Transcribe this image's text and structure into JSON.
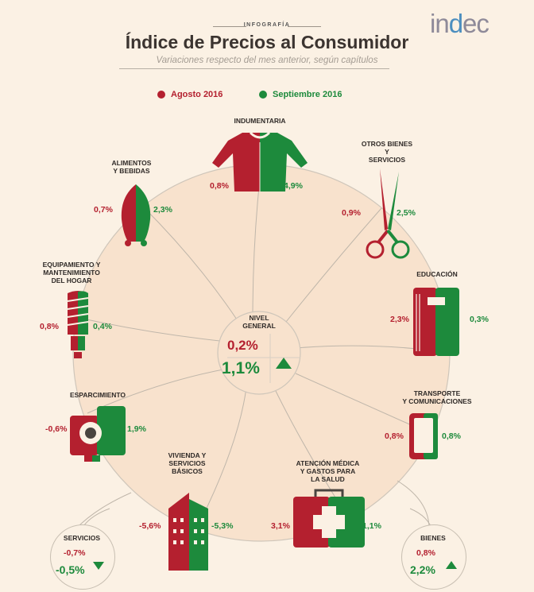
{
  "header": {
    "kicker": "INFOGRAFÍA",
    "title": "Índice de Precios al Consumidor",
    "subtitle": "Variaciones respecto del mes anterior, según capítulos",
    "logo_text_a": "in",
    "logo_text_b": "d",
    "logo_text_c": "ec"
  },
  "legend": {
    "aug_label": "Agosto 2016",
    "sep_label": "Septiembre 2016",
    "aug_color": "#b4202f",
    "sep_color": "#1d8a3c"
  },
  "center": {
    "label_line1": "NIVEL",
    "label_line2": "GENERAL",
    "aug": "0,2%",
    "sep": "1,1%",
    "trend": "up"
  },
  "categories": [
    {
      "key": "indumentaria",
      "label": [
        "INDUMENTARIA"
      ],
      "aug": "0,8%",
      "sep": "4,9%",
      "icon": "sweater-icon"
    },
    {
      "key": "otros",
      "label": [
        "OTROS BIENES",
        "Y",
        "SERVICIOS"
      ],
      "aug": "0,9%",
      "sep": "2,5%",
      "icon": "scissors-icon"
    },
    {
      "key": "educacion",
      "label": [
        "EDUCACIÓN"
      ],
      "aug": "2,3%",
      "sep": "0,3%",
      "icon": "notebook-icon"
    },
    {
      "key": "transporte",
      "label": [
        "TRANSPORTE",
        "Y COMUNICACIONES"
      ],
      "aug": "0,8%",
      "sep": "0,8%",
      "icon": "phone-icon"
    },
    {
      "key": "salud",
      "label": [
        "ATENCIÓN MÉDICA",
        "Y GASTOS PARA",
        "LA SALUD"
      ],
      "aug": "3,1%",
      "sep": "1,1%",
      "icon": "medkit-icon"
    },
    {
      "key": "vivienda",
      "label": [
        "VIVIENDA Y",
        "SERVICIOS",
        "BÁSICOS"
      ],
      "aug": "-5,6%",
      "sep": "-5,3%",
      "icon": "building-icon"
    },
    {
      "key": "esparcimiento",
      "label": [
        "ESPARCIMIENTO"
      ],
      "aug": "-0,6%",
      "sep": "1,9%",
      "icon": "camera-icon"
    },
    {
      "key": "equipamiento",
      "label": [
        "EQUIPAMIENTO Y",
        "MANTENIMIENTO",
        "DEL HOGAR"
      ],
      "aug": "0,8%",
      "sep": "0,4%",
      "icon": "lightbulb-icon"
    },
    {
      "key": "alimentos",
      "label": [
        "ALIMENTOS",
        "Y BEBIDAS"
      ],
      "aug": "0,7%",
      "sep": "2,3%",
      "icon": "chicken-icon"
    }
  ],
  "servicios": {
    "label": "SERVICIOS",
    "aug": "-0,7%",
    "sep": "-0,5%",
    "trend": "down"
  },
  "bienes": {
    "label": "BIENES",
    "aug": "0,8%",
    "sep": "2,2%",
    "trend": "up"
  }
}
